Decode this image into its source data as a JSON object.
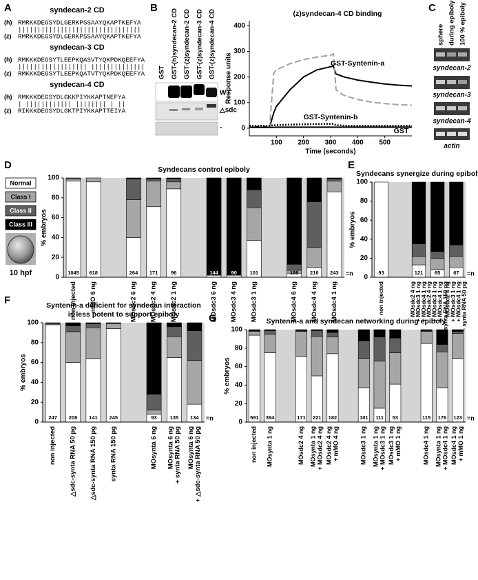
{
  "panel_labels": [
    "A",
    "B",
    "C",
    "D",
    "E",
    "F",
    "G"
  ],
  "alignments": [
    {
      "title": "syndecan-2 CD",
      "human_label": "(h)",
      "human": "RMRKKDEGSYDLGERKPSSAAYQKAPTKEFYA",
      "match": "||||||||||||||||||||||||||||||||",
      "zebrafish_label": "(z)",
      "zebrafish": "RMRKKDEGSYDLGERKPSSAAYQKAPTKEFYA"
    },
    {
      "title": "syndecan-3 CD",
      "human_label": "(h)",
      "human": "RMKKKDEGSYTLEEPKQASVTYQKPDKQEEFYA",
      "match": "|||||||||||||||||| ||||||||||||||",
      "zebrafish_label": "(z)",
      "zebrafish": "RMKKKDEGSYTLEEPKQATVTYQKPDKQEEFYA"
    },
    {
      "title": "syndecan-4 CD",
      "human_label": "(h)",
      "human": "RMKKKDEGSYDLGKKPIYKKAPTNEFYA",
      "match": "| |||||||||||| |||||||| | ||",
      "zebrafish_label": "(z)",
      "zebrafish": "RIKKKDEGSYDLGKTPIYKKAPTTEIYA"
    }
  ],
  "gel_b": {
    "columns": [
      "GST",
      "GST-(h)syndecan-2 CD",
      "GST-(z)syndecan-2 CD",
      "GST-(z)syndecan-3 CD",
      "GST-(z)syndecan-4 CD"
    ],
    "rows": [
      "WT",
      "△sdc",
      "-"
    ]
  },
  "gel_c": {
    "columns": [
      "sphere",
      "during epiboly",
      "100 % epiboly"
    ],
    "rows": [
      "syndecan-2",
      "syndecan-3",
      "syndecan-4",
      "actin"
    ]
  },
  "embryo_label": "10 hpf",
  "chart_data": [
    {
      "type": "line",
      "title": "(z)syndecan-4 CD binding",
      "x_label": "Time (seconds)",
      "y_label": "Response units",
      "xlim": [
        0,
        600
      ],
      "ylim": [
        -30,
        420
      ],
      "xticks": [
        100,
        200,
        300,
        400,
        500
      ],
      "yticks": [
        0,
        100,
        200,
        300,
        400
      ],
      "x": [
        0,
        50,
        75,
        90,
        100,
        150,
        200,
        250,
        300,
        310,
        320,
        350,
        400,
        450,
        500,
        550,
        600
      ],
      "series": [
        {
          "name": "GST-Syntenin-a",
          "color": "#000000",
          "style": "solid",
          "values": [
            5,
            5,
            5,
            60,
            85,
            150,
            200,
            228,
            240,
            243,
            212,
            200,
            188,
            180,
            173,
            168,
            165
          ]
        },
        {
          "color": "#a0a0a0",
          "style": "dashed",
          "values": [
            5,
            5,
            5,
            215,
            228,
            252,
            268,
            278,
            285,
            290,
            150,
            128,
            112,
            102,
            96,
            92,
            90
          ]
        },
        {
          "name": "GST-Syntenin-b",
          "color": "#000000",
          "style": "dotted",
          "values": [
            10,
            10,
            10,
            11,
            12,
            14,
            15,
            16,
            17,
            17,
            12,
            10,
            10,
            10,
            10,
            10,
            10
          ]
        },
        {
          "name": "GST",
          "color": "#000000",
          "style": "solid",
          "values": [
            3,
            3,
            3,
            3,
            4,
            4,
            4,
            4,
            4,
            4,
            4,
            4,
            4,
            4,
            4,
            4,
            4
          ]
        }
      ]
    },
    {
      "type": "stacked_bar",
      "title": "Syndecans control epiboly",
      "y_label": "% embryos",
      "n_label": "=n",
      "background": "#d4d4d4",
      "legend": "left",
      "ylim": [
        0,
        100
      ],
      "yticks": [
        0,
        20,
        40,
        60,
        80,
        100
      ],
      "categories": [
        "non injected",
        "mMO 6 ng",
        null,
        "MOsdc2 6 ng",
        "MOsdc2 4 ng",
        "MOsdc2 1 ng",
        null,
        "MOsdc3 6 ng",
        "MOsdc3 4 ng",
        "MOsdc3 1 ng",
        null,
        "MOsdc4 6 ng",
        "MOsdc4 4 ng",
        "MOsdc4 1 ng"
      ],
      "n": [
        1045,
        618,
        null,
        264,
        171,
        96,
        null,
        144,
        90,
        101,
        null,
        188,
        216,
        243
      ],
      "series": [
        {
          "name": "Normal",
          "color": "#ffffff",
          "values": [
            97,
            96,
            null,
            40,
            71,
            89,
            null,
            2,
            2,
            37,
            null,
            4,
            10,
            86
          ]
        },
        {
          "name": "Class I",
          "color": "#a6a6a6",
          "values": [
            2,
            4,
            null,
            38,
            26,
            7,
            null,
            0,
            0,
            33,
            null,
            3,
            20,
            11
          ]
        },
        {
          "name": "Class II",
          "color": "#5f5f5f",
          "values": [
            1,
            0,
            null,
            21,
            2,
            3,
            null,
            0,
            0,
            18,
            null,
            6,
            46,
            2
          ]
        },
        {
          "name": "Class III",
          "color": "#000000",
          "values": [
            0,
            0,
            null,
            1,
            1,
            1,
            null,
            98,
            98,
            12,
            null,
            87,
            24,
            1
          ]
        }
      ]
    },
    {
      "type": "stacked_bar",
      "title": "Syndecans synergize during epiboly",
      "y_label": "% embryos",
      "n_label": "=n",
      "background": "#d4d4d4",
      "ylim": [
        0,
        100
      ],
      "yticks": [
        0,
        20,
        40,
        60,
        80,
        100
      ],
      "categories": [
        [
          "non injected"
        ],
        null,
        [
          "MOsdc2 4 ng",
          "+ MOsdc3 1 ng",
          "+ MOsdc4 1 ng"
        ],
        [
          "MOsdc2 4 ng",
          "+ MOsdc3 1 ng",
          "+ MOsdc4 1 ng",
          "+ synta RNA 150 pg"
        ],
        [
          "MOsdc2 4 ng",
          "+ MOsdc3 1 ng",
          "+ MOsdc4 1 ng",
          "+ synta RNA 50 pg"
        ]
      ],
      "n": [
        93,
        null,
        121,
        65,
        67
      ],
      "series": [
        {
          "color": "#ffffff",
          "values": [
            100,
            null,
            13,
            8,
            10
          ]
        },
        {
          "color": "#a6a6a6",
          "values": [
            0,
            null,
            9,
            12,
            12
          ]
        },
        {
          "color": "#5f5f5f",
          "values": [
            0,
            null,
            13,
            7,
            12
          ]
        },
        {
          "color": "#000000",
          "values": [
            0,
            null,
            65,
            73,
            66
          ]
        }
      ]
    },
    {
      "type": "stacked_bar",
      "title": [
        "Syntenin-a deficient for syndecan interaction",
        "is less potent to support epiboly"
      ],
      "y_label": "% embryos",
      "n_label": "=n",
      "background": "#d4d4d4",
      "ylim": [
        0,
        100
      ],
      "yticks": [
        0,
        20,
        40,
        60,
        80,
        100
      ],
      "categories": [
        [
          "non injected"
        ],
        [
          "△sdc-synta RNA 50 pg"
        ],
        [
          "△sdc-synta RNA 150 pg"
        ],
        [
          "synta RNA 150 pg"
        ],
        null,
        [
          "MOsynta 6 ng"
        ],
        [
          "MOsynta 6 ng",
          "+ synta RNA 50 pg"
        ],
        [
          "MOsynta 6 ng",
          "+ △sdc-synta RNA 50 pg"
        ]
      ],
      "n": [
        247,
        208,
        141,
        245,
        null,
        93,
        135,
        134
      ],
      "series": [
        {
          "color": "#ffffff",
          "values": [
            98,
            60,
            64,
            94,
            null,
            8,
            65,
            18
          ]
        },
        {
          "color": "#a6a6a6",
          "values": [
            1,
            31,
            31,
            5,
            null,
            4,
            21,
            44
          ]
        },
        {
          "color": "#5f5f5f",
          "values": [
            1,
            6,
            4,
            1,
            null,
            16,
            10,
            30
          ]
        },
        {
          "color": "#000000",
          "values": [
            0,
            3,
            1,
            0,
            null,
            72,
            4,
            8
          ]
        }
      ]
    },
    {
      "type": "stacked_bar",
      "title": "Syntenin-a and syndecan networking during epiboly",
      "y_label": "% embryos",
      "n_label": "=n",
      "background": "#d4d4d4",
      "ylim": [
        0,
        100
      ],
      "yticks": [
        0,
        20,
        40,
        60,
        80,
        100
      ],
      "categories": [
        [
          "non injected"
        ],
        [
          "MOsynta 1 ng"
        ],
        null,
        [
          "MOsdc2 4 ng"
        ],
        [
          "MOsynta 1 ng",
          "+ MOsdc2 4 ng"
        ],
        [
          "MOsdc2 4 ng",
          "+ mMO 4 ng"
        ],
        null,
        [
          "MOsdc3 1 ng"
        ],
        [
          "MOsynta 1 ng",
          "+ MOsdc3 1 ng"
        ],
        [
          "MOsdc3 1 ng",
          "+ mMO 1 ng"
        ],
        null,
        [
          "MOsdc4 1 ng"
        ],
        [
          "MOsynta 1 ng",
          "+ MOsdc4 1 ng"
        ],
        [
          "MOsdc4 1 ng",
          "+ mMO 1 ng"
        ]
      ],
      "n": [
        591,
        394,
        null,
        171,
        221,
        182,
        null,
        101,
        111,
        53,
        null,
        115,
        176,
        123
      ],
      "series": [
        {
          "color": "#ffffff",
          "values": [
            94,
            75,
            null,
            71,
            50,
            74,
            null,
            37,
            15,
            41,
            null,
            85,
            37,
            69
          ]
        },
        {
          "color": "#a6a6a6",
          "values": [
            4,
            20,
            null,
            27,
            43,
            18,
            null,
            32,
            51,
            34,
            null,
            13,
            39,
            27
          ]
        },
        {
          "color": "#5f5f5f",
          "values": [
            1,
            4,
            null,
            1,
            6,
            5,
            null,
            19,
            26,
            16,
            null,
            1,
            8,
            2
          ]
        },
        {
          "color": "#000000",
          "values": [
            1,
            1,
            null,
            1,
            1,
            3,
            null,
            12,
            8,
            9,
            null,
            1,
            16,
            2
          ]
        }
      ]
    }
  ]
}
